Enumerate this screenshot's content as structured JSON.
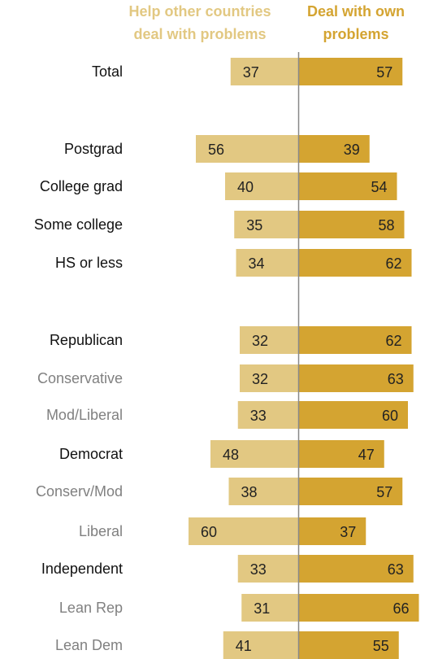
{
  "colors": {
    "help_bar": "#e2c882",
    "own_bar": "#d4a431",
    "help_header": "#e2c882",
    "own_header": "#d4a431",
    "divider": "#888888",
    "label_main": "#111111",
    "label_sub": "#808080"
  },
  "chart_data": {
    "type": "bar",
    "layout": "diverging-horizontal",
    "headers": {
      "left": [
        "Help other countries",
        "deal with problems"
      ],
      "right": [
        "Deal with own",
        "problems"
      ]
    },
    "series": [
      {
        "name": "Help other countries deal with problems"
      },
      {
        "name": "Deal with own problems"
      }
    ],
    "categories": [
      {
        "label": "Total",
        "sub": false,
        "help": 37,
        "own": 57
      },
      {
        "label": "Postgrad",
        "sub": false,
        "help": 56,
        "own": 39
      },
      {
        "label": "College grad",
        "sub": false,
        "help": 40,
        "own": 54
      },
      {
        "label": "Some college",
        "sub": false,
        "help": 35,
        "own": 58
      },
      {
        "label": "HS or less",
        "sub": false,
        "help": 34,
        "own": 62
      },
      {
        "label": "Republican",
        "sub": false,
        "help": 32,
        "own": 62
      },
      {
        "label": "Conservative",
        "sub": true,
        "help": 32,
        "own": 63
      },
      {
        "label": "Mod/Liberal",
        "sub": true,
        "help": 33,
        "own": 60
      },
      {
        "label": "Democrat",
        "sub": false,
        "help": 48,
        "own": 47
      },
      {
        "label": "Conserv/Mod",
        "sub": true,
        "help": 38,
        "own": 57
      },
      {
        "label": "Liberal",
        "sub": true,
        "help": 60,
        "own": 37
      },
      {
        "label": "Independent",
        "sub": false,
        "help": 33,
        "own": 63
      },
      {
        "label": "Lean Rep",
        "sub": true,
        "help": 31,
        "own": 66
      },
      {
        "label": "Lean Dem",
        "sub": true,
        "help": 41,
        "own": 55
      }
    ]
  }
}
